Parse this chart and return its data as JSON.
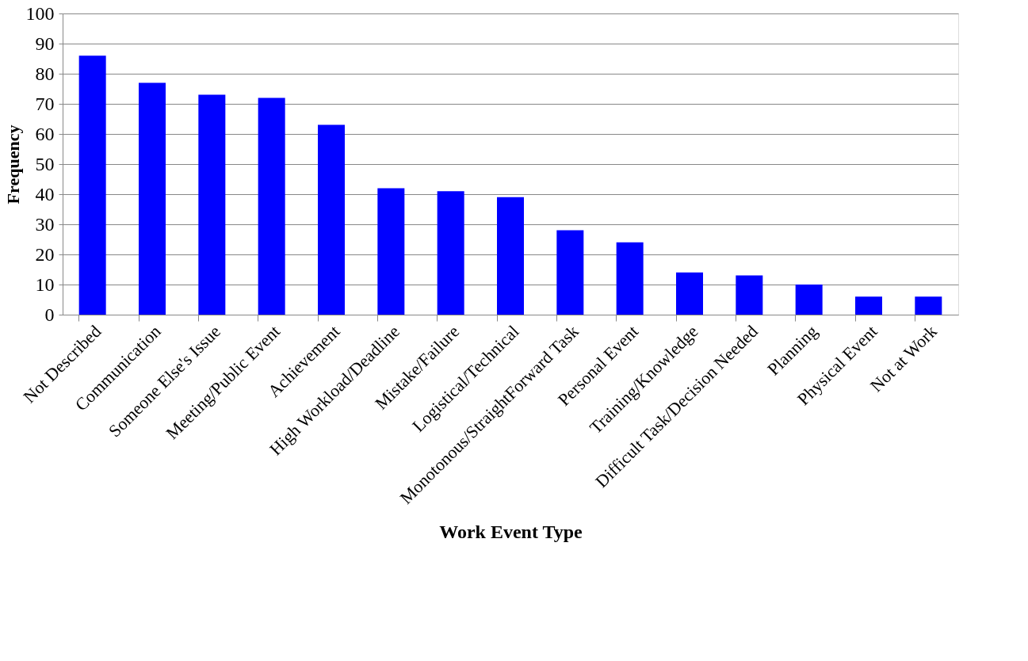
{
  "chart_data": {
    "type": "bar",
    "xlabel": "Work Event Type",
    "ylabel": "Frequency",
    "categories": [
      "Not Described",
      "Communication",
      "Someone Else's Issue",
      "Meeting/Public Event",
      "Achievement",
      "High Workload/Deadline",
      "Mistake/Failure",
      "Logistical/Technical",
      "Monotonous/StraightForward Task",
      "Personal Event",
      "Training/Knowledge",
      "Difficult Task/Decision Needed",
      "Planning",
      "Physical Event",
      "Not at Work"
    ],
    "values": [
      86,
      77,
      73,
      72,
      63,
      42,
      41,
      39,
      28,
      24,
      14,
      13,
      10,
      6,
      6
    ],
    "color": "#0000ff",
    "ylim": [
      0,
      100
    ],
    "yticks": [
      0,
      10,
      20,
      30,
      40,
      50,
      60,
      70,
      80,
      90,
      100
    ],
    "grid": "y"
  }
}
